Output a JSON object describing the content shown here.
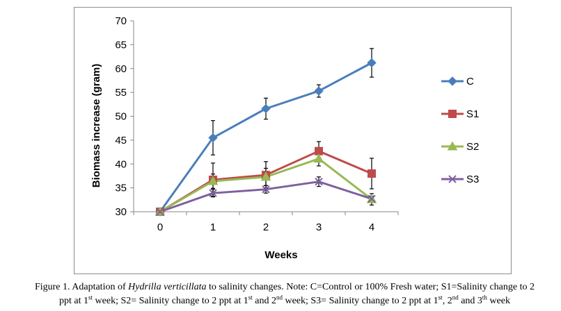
{
  "chart_data": {
    "type": "line",
    "xlabel": "Weeks",
    "ylabel": "Biomass increase (gram)",
    "x": [
      0,
      1,
      2,
      3,
      4
    ],
    "ylim": [
      30,
      70
    ],
    "yticks": [
      30,
      35,
      40,
      45,
      50,
      55,
      60,
      65,
      70
    ],
    "grid": false,
    "legend_position": "right",
    "error_bars": true,
    "series": [
      {
        "name": "C",
        "color": "#4a7ebb",
        "marker": "diamond",
        "values": [
          30,
          45.5,
          51.6,
          55.3,
          61.2
        ],
        "errors": [
          0,
          3.6,
          2.2,
          1.3,
          3.0
        ]
      },
      {
        "name": "S1",
        "color": "#be4b48",
        "marker": "square",
        "values": [
          30,
          36.7,
          37.7,
          42.7,
          38.0
        ],
        "errors": [
          0,
          3.5,
          2.8,
          2.0,
          3.2
        ]
      },
      {
        "name": "S2",
        "color": "#98b954",
        "marker": "triangle",
        "values": [
          30,
          36.4,
          37.3,
          41.1,
          32.6
        ],
        "errors": [
          0,
          1.5,
          1.8,
          1.5,
          1.2
        ]
      },
      {
        "name": "S3",
        "color": "#7d60a0",
        "marker": "x",
        "values": [
          30,
          33.9,
          34.7,
          36.3,
          32.7
        ],
        "errors": [
          0,
          0.8,
          0.8,
          1.0,
          0.6
        ]
      }
    ]
  },
  "caption": {
    "figure_label": "Figure 1. Adaptation of ",
    "species": "Hydrilla verticillata",
    "line1_rest": " to salinity changes. Note: C=Control or 100% Fresh water; S1=Salinity change to 2",
    "line2_a": "ppt at 1",
    "sup_st": "st",
    "line2_b": " week; S2= Salinity change to 2 ppt at 1",
    "sup_st_2": "st",
    "line2_c": " and 2",
    "sup_nd": "nd",
    "line2_d": " week; S3= Salinity change to 2 ppt at 1",
    "sup_st_3": "st",
    "line2_e": ", 2",
    "sup_nd_2": "nd",
    "line2_f": " and 3",
    "sup_th": "th",
    "line2_g": " week"
  }
}
